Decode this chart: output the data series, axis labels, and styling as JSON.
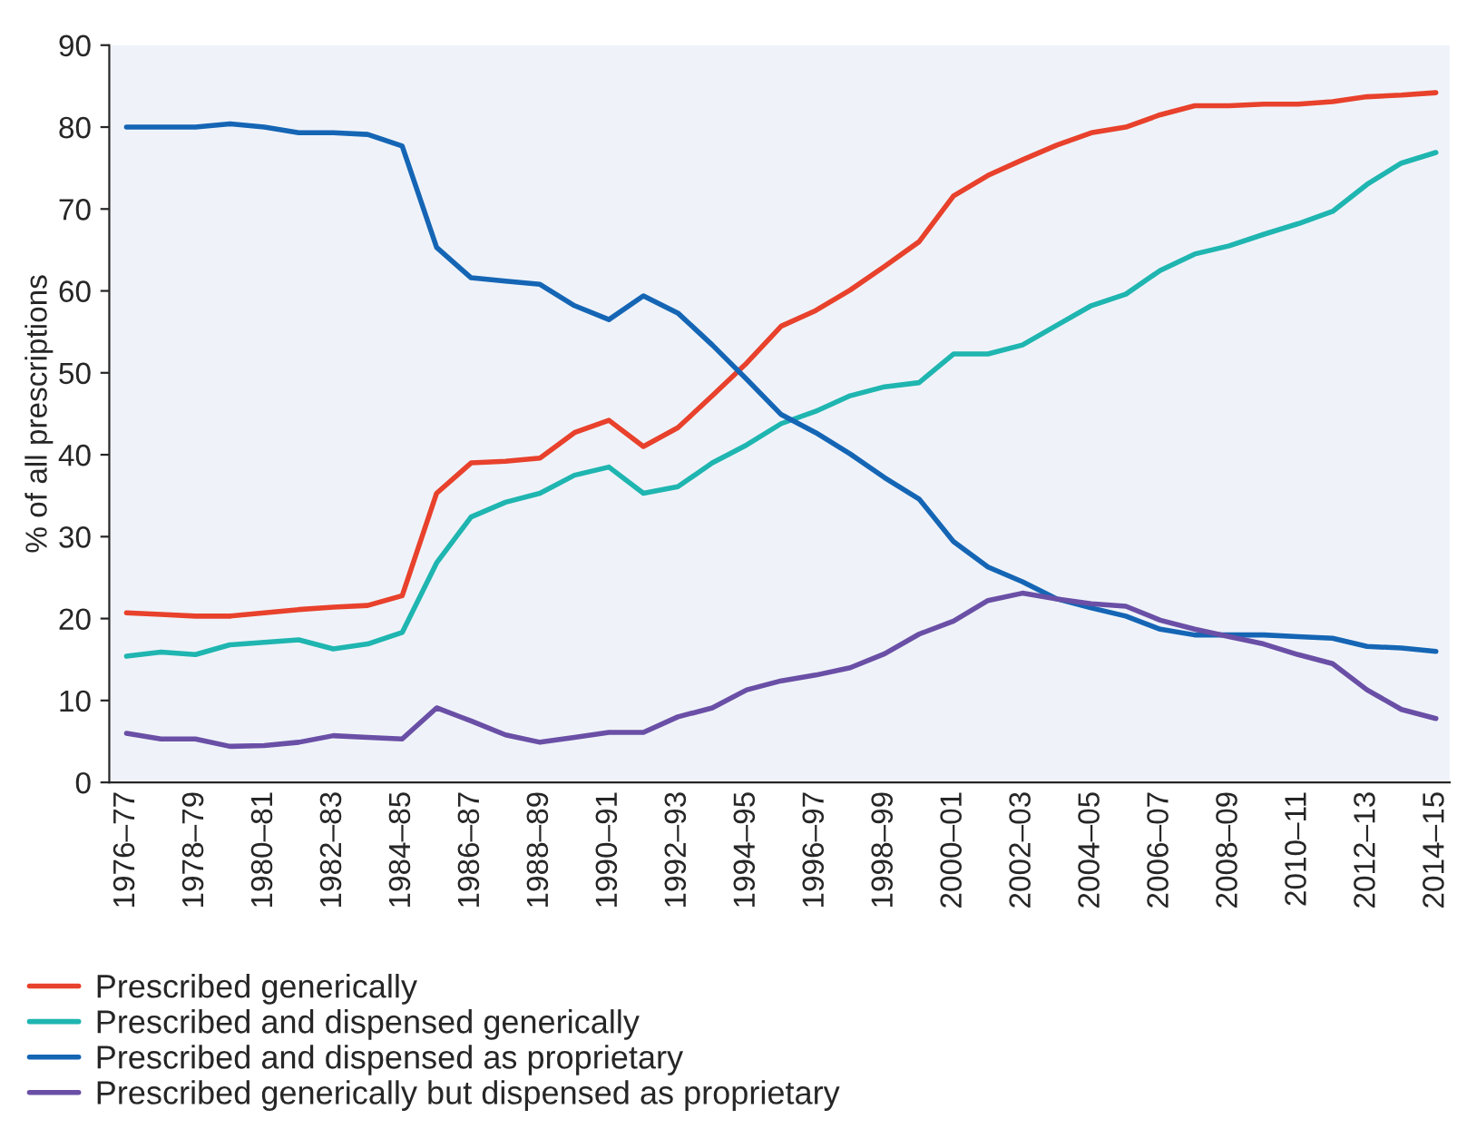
{
  "chart_data": {
    "type": "line",
    "ylabel": "% of all prescriptions",
    "categories": [
      "1976–77",
      null,
      "1978–79",
      null,
      "1980–81",
      null,
      "1982–83",
      null,
      "1984–85",
      null,
      "1986–87",
      null,
      "1988–89",
      null,
      "1990–91",
      null,
      "1992–93",
      null,
      "1994–95",
      null,
      "1996–97",
      null,
      "1998–99",
      null,
      "2000–01",
      null,
      "2002–03",
      null,
      "2004–05",
      null,
      "2006–07",
      null,
      "2008–09",
      null,
      "2010–11",
      null,
      "2012–13",
      null,
      "2014–15"
    ],
    "series": [
      {
        "name": "Prescribed generically",
        "color": "#e8412c",
        "values": [
          20.7,
          20.5,
          20.3,
          20.3,
          20.7,
          21.1,
          21.4,
          21.6,
          22.8,
          35.3,
          39.0,
          39.2,
          39.6,
          42.7,
          44.2,
          41.0,
          43.3,
          47.2,
          51.2,
          55.7,
          57.6,
          60.1,
          63.0,
          66.0,
          71.6,
          74.1,
          76.0,
          77.8,
          79.3,
          80.0,
          81.5,
          82.6,
          82.6,
          82.8,
          82.8,
          83.1,
          83.7,
          83.9,
          84.2
        ]
      },
      {
        "name": "Prescribed and dispensed generically",
        "color": "#1fb5b0",
        "values": [
          15.4,
          15.9,
          15.6,
          16.8,
          17.1,
          17.4,
          16.3,
          16.9,
          18.3,
          26.8,
          32.4,
          34.2,
          35.3,
          37.5,
          38.5,
          35.3,
          36.1,
          39.0,
          41.2,
          43.8,
          45.3,
          47.2,
          48.3,
          48.8,
          52.3,
          52.3,
          53.4,
          55.8,
          58.2,
          59.6,
          62.5,
          64.5,
          65.5,
          66.9,
          68.2,
          69.7,
          73.0,
          75.6,
          76.9
        ]
      },
      {
        "name": "Prescribed and dispensed as proprietary",
        "color": "#1565b5",
        "values": [
          80.0,
          80.0,
          80.0,
          80.4,
          80.0,
          79.3,
          79.3,
          79.1,
          77.7,
          65.3,
          61.6,
          61.2,
          60.8,
          58.2,
          56.5,
          59.4,
          57.3,
          53.4,
          49.2,
          44.9,
          42.7,
          40.1,
          37.2,
          34.6,
          29.4,
          26.3,
          24.5,
          22.4,
          21.3,
          20.3,
          18.7,
          18.0,
          18.0,
          18.0,
          17.8,
          17.6,
          16.6,
          16.4,
          16.0
        ]
      },
      {
        "name": "Prescribed generically but dispensed as proprietary",
        "color": "#6a4fa6",
        "values": [
          6.0,
          5.3,
          5.3,
          4.4,
          4.5,
          4.9,
          5.7,
          5.5,
          5.3,
          9.1,
          7.5,
          5.8,
          4.9,
          5.5,
          6.1,
          6.1,
          8.0,
          9.1,
          11.3,
          12.4,
          13.1,
          14.0,
          15.7,
          18.1,
          19.7,
          22.2,
          23.1,
          22.4,
          21.8,
          21.5,
          19.8,
          18.7,
          17.8,
          16.9,
          15.6,
          14.5,
          11.3,
          8.9,
          7.8
        ]
      }
    ],
    "ylim": [
      0,
      90
    ],
    "yticks": [
      0,
      10,
      20,
      30,
      40,
      50,
      60,
      70,
      80,
      90
    ],
    "legend": "bottom left",
    "grid": false,
    "marker": "none",
    "line_style": "solid"
  }
}
